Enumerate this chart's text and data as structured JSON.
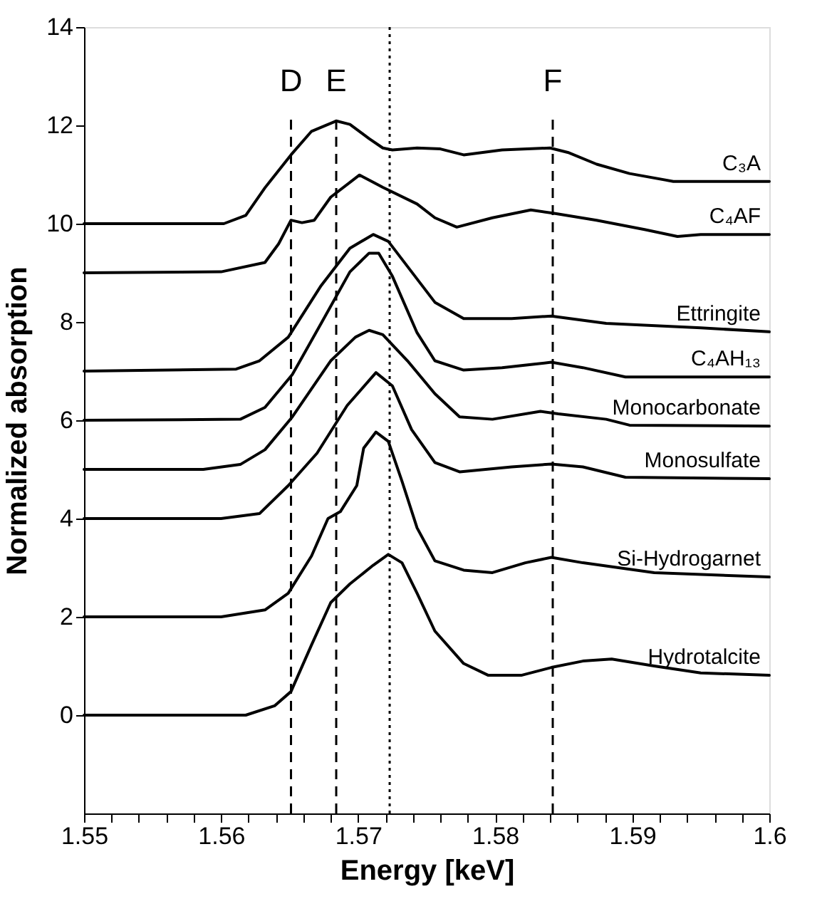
{
  "chart_data": {
    "type": "line",
    "xlabel": "Energy  [keV]",
    "ylabel": "Normalized absorption",
    "xlim": [
      1.55,
      1.6
    ],
    "ylim": [
      -2,
      14
    ],
    "xticks": [
      1.55,
      {
        "value": 1.552,
        "label": null
      },
      {
        "value": 1.554,
        "label": null
      },
      {
        "value": 1.556,
        "label": null
      },
      {
        "value": 1.558,
        "label": null
      },
      1.56,
      {
        "value": 1.562,
        "label": null
      },
      {
        "value": 1.564,
        "label": null
      },
      {
        "value": 1.566,
        "label": null
      },
      {
        "value": 1.568,
        "label": null
      },
      1.57,
      {
        "value": 1.572,
        "label": null
      },
      {
        "value": 1.574,
        "label": null
      },
      {
        "value": 1.576,
        "label": null
      },
      {
        "value": 1.578,
        "label": null
      },
      1.58,
      {
        "value": 1.582,
        "label": null
      },
      {
        "value": 1.584,
        "label": null
      },
      {
        "value": 1.586,
        "label": null
      },
      {
        "value": 1.588,
        "label": null
      },
      1.59,
      {
        "value": 1.592,
        "label": null
      },
      {
        "value": 1.594,
        "label": null
      },
      {
        "value": 1.596,
        "label": null
      },
      {
        "value": 1.598,
        "label": null
      },
      1.6
    ],
    "yticks": [
      0,
      2,
      4,
      6,
      8,
      10,
      12,
      14
    ],
    "grid": false,
    "legend": false,
    "marker": "none",
    "line_style": "solid",
    "ref_lines": [
      {
        "axis": "x",
        "value": 1.5651,
        "label": "D",
        "line_style": "dashed",
        "color": "#000000"
      },
      {
        "axis": "x",
        "value": 1.5684,
        "label": "E",
        "line_style": "dashed",
        "color": "#000000"
      },
      {
        "axis": "x",
        "value": 1.5723,
        "label": null,
        "line_style": "dotted",
        "color": "#000000"
      },
      {
        "axis": "x",
        "value": 1.5842,
        "label": "F",
        "line_style": "dashed",
        "color": "#000000"
      }
    ],
    "series": [
      {
        "name": "C₃A",
        "color": "#000000",
        "x": [
          1.55,
          1.5602,
          1.5618,
          1.5632,
          1.5651,
          1.5666,
          1.5684,
          1.5694,
          1.5708,
          1.5718,
          1.5725,
          1.5743,
          1.576,
          1.5777,
          1.5805,
          1.584,
          1.5853,
          1.5874,
          1.5898,
          1.593,
          1.6
        ],
        "values": [
          10.0,
          10.0,
          10.17,
          10.73,
          11.4,
          11.88,
          12.09,
          12.02,
          11.73,
          11.54,
          11.5,
          11.54,
          11.52,
          11.4,
          11.5,
          11.54,
          11.45,
          11.21,
          11.02,
          10.86,
          10.86
        ]
      },
      {
        "name": "C₄AF",
        "color": "#000000",
        "x": [
          1.55,
          1.56,
          1.5632,
          1.5642,
          1.5651,
          1.5659,
          1.5668,
          1.568,
          1.5701,
          1.5718,
          1.5743,
          1.5756,
          1.5772,
          1.5798,
          1.5826,
          1.5843,
          1.5874,
          1.5909,
          1.5933,
          1.595,
          1.6
        ],
        "values": [
          9.0,
          9.02,
          9.21,
          9.59,
          10.07,
          10.02,
          10.07,
          10.54,
          10.99,
          10.74,
          10.4,
          10.12,
          9.93,
          10.12,
          10.28,
          10.21,
          10.07,
          9.88,
          9.74,
          9.78,
          9.78
        ]
      },
      {
        "name": "Ettringite",
        "color": "#000000",
        "x": [
          1.55,
          1.5611,
          1.5628,
          1.5649,
          1.5673,
          1.5694,
          1.5711,
          1.5722,
          1.5739,
          1.5756,
          1.5777,
          1.5812,
          1.5841,
          1.5881,
          1.595,
          1.6
        ],
        "values": [
          7.0,
          7.04,
          7.21,
          7.69,
          8.74,
          9.5,
          9.78,
          9.64,
          9.02,
          8.4,
          8.07,
          8.07,
          8.12,
          7.97,
          7.88,
          7.8
        ]
      },
      {
        "name": "C₄AH₁₃",
        "color": "#000000",
        "x": [
          1.55,
          1.5614,
          1.5632,
          1.5652,
          1.5673,
          1.5694,
          1.5708,
          1.5715,
          1.5725,
          1.5743,
          1.5756,
          1.5777,
          1.5805,
          1.5841,
          1.5864,
          1.5895,
          1.6
        ],
        "values": [
          6.0,
          6.02,
          6.26,
          6.93,
          7.97,
          9.02,
          9.4,
          9.4,
          8.93,
          7.78,
          7.21,
          7.02,
          7.07,
          7.18,
          7.07,
          6.88,
          6.88
        ]
      },
      {
        "name": "Monocarbonate",
        "color": "#000000",
        "x": [
          1.55,
          1.5587,
          1.5614,
          1.5632,
          1.5652,
          1.568,
          1.5698,
          1.5708,
          1.5718,
          1.5736,
          1.5756,
          1.5774,
          1.5798,
          1.5833,
          1.5846,
          1.5881,
          1.5898,
          1.6
        ],
        "values": [
          5.0,
          5.0,
          5.1,
          5.4,
          6.07,
          7.21,
          7.69,
          7.83,
          7.74,
          7.21,
          6.54,
          6.07,
          6.02,
          6.18,
          6.13,
          6.02,
          5.9,
          5.88
        ]
      },
      {
        "name": "Monosulfate",
        "color": "#000000",
        "x": [
          1.55,
          1.56,
          1.5628,
          1.5649,
          1.567,
          1.5692,
          1.5713,
          1.5725,
          1.5739,
          1.5756,
          1.5774,
          1.5812,
          1.5841,
          1.5864,
          1.5895,
          1.6
        ],
        "values": [
          4.0,
          4.0,
          4.1,
          4.67,
          5.33,
          6.3,
          6.97,
          6.7,
          5.81,
          5.14,
          4.95,
          5.05,
          5.11,
          5.05,
          4.84,
          4.81
        ]
      },
      {
        "name": "Si-Hydrogarnet",
        "color": "#000000",
        "x": [
          1.55,
          1.56,
          1.5632,
          1.5649,
          1.5666,
          1.5678,
          1.5687,
          1.5699,
          1.5704,
          1.5713,
          1.5722,
          1.5732,
          1.5743,
          1.5756,
          1.5777,
          1.5798,
          1.5822,
          1.5841,
          1.5864,
          1.5916,
          1.6
        ],
        "values": [
          2.0,
          2.0,
          2.14,
          2.48,
          3.24,
          4.0,
          4.14,
          4.67,
          5.43,
          5.76,
          5.57,
          4.76,
          3.81,
          3.14,
          2.95,
          2.9,
          3.1,
          3.21,
          3.1,
          2.9,
          2.81
        ]
      },
      {
        "name": "Hydrotalcite",
        "color": "#000000",
        "x": [
          1.55,
          1.5618,
          1.5639,
          1.5651,
          1.5666,
          1.568,
          1.5694,
          1.5711,
          1.5722,
          1.5732,
          1.5743,
          1.5756,
          1.5777,
          1.5795,
          1.5819,
          1.5841,
          1.5864,
          1.5885,
          1.5916,
          1.595,
          1.6
        ],
        "values": [
          0.0,
          0.0,
          0.19,
          0.48,
          1.43,
          2.29,
          2.67,
          3.05,
          3.27,
          3.1,
          2.48,
          1.71,
          1.05,
          0.81,
          0.81,
          0.97,
          1.1,
          1.14,
          1.0,
          0.86,
          0.81
        ]
      }
    ]
  }
}
